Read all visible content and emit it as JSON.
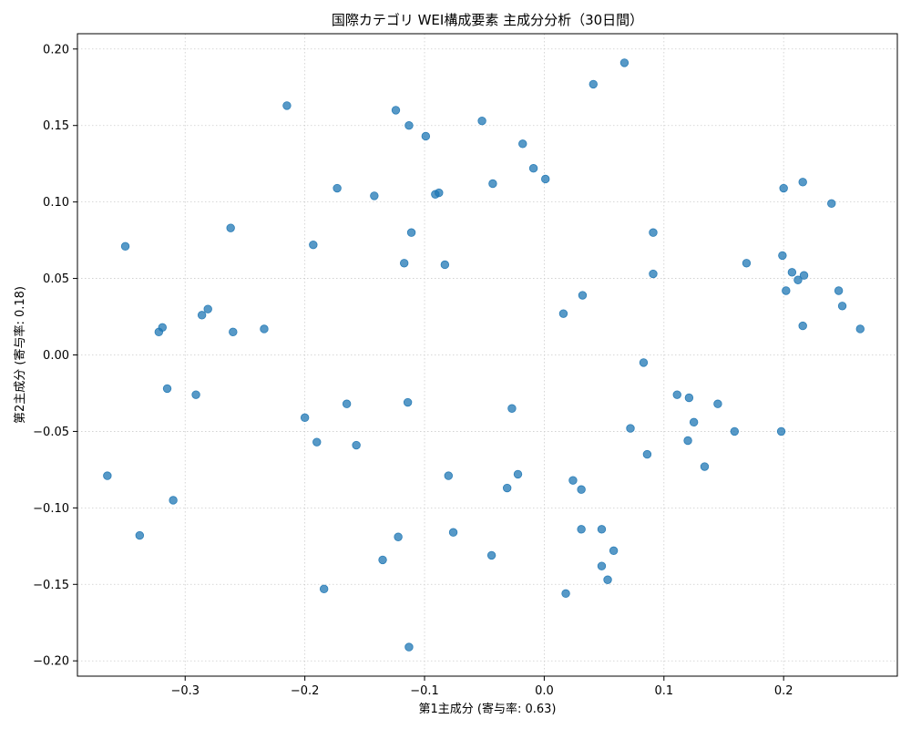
{
  "chart_data": {
    "type": "scatter",
    "title": "国際カテゴリ WEI構成要素 主成分分析（30日間）",
    "xlabel": "第1主成分 (寄与率: 0.63)",
    "ylabel": "第2主成分 (寄与率: 0.18)",
    "xlim": [
      -0.39,
      0.295
    ],
    "ylim": [
      -0.21,
      0.21
    ],
    "xticks": [
      -0.3,
      -0.2,
      -0.1,
      0.0,
      0.1,
      0.2
    ],
    "xtick_labels": [
      "−0.3",
      "−0.2",
      "−0.1",
      "0.0",
      "0.1",
      "0.2"
    ],
    "yticks": [
      -0.2,
      -0.15,
      -0.1,
      -0.05,
      0.0,
      0.05,
      0.1,
      0.15,
      0.2
    ],
    "ytick_labels": [
      "−0.20",
      "−0.15",
      "−0.10",
      "−0.05",
      "0.00",
      "0.05",
      "0.10",
      "0.15",
      "0.20"
    ],
    "grid": true,
    "color": "#1f77b4",
    "points": [
      [
        0.067,
        0.191
      ],
      [
        0.041,
        0.177
      ],
      [
        -0.215,
        0.163
      ],
      [
        -0.124,
        0.16
      ],
      [
        -0.052,
        0.153
      ],
      [
        -0.113,
        0.15
      ],
      [
        -0.099,
        0.143
      ],
      [
        -0.018,
        0.138
      ],
      [
        -0.009,
        0.122
      ],
      [
        0.001,
        0.115
      ],
      [
        -0.043,
        0.112
      ],
      [
        -0.173,
        0.109
      ],
      [
        -0.091,
        0.105
      ],
      [
        -0.088,
        0.106
      ],
      [
        -0.142,
        0.104
      ],
      [
        0.2,
        0.109
      ],
      [
        0.216,
        0.113
      ],
      [
        0.24,
        0.099
      ],
      [
        -0.262,
        0.083
      ],
      [
        -0.111,
        0.08
      ],
      [
        0.091,
        0.08
      ],
      [
        -0.193,
        0.072
      ],
      [
        -0.35,
        0.071
      ],
      [
        -0.117,
        0.06
      ],
      [
        -0.083,
        0.059
      ],
      [
        0.169,
        0.06
      ],
      [
        0.199,
        0.065
      ],
      [
        0.207,
        0.054
      ],
      [
        0.217,
        0.052
      ],
      [
        0.212,
        0.049
      ],
      [
        0.091,
        0.053
      ],
      [
        0.202,
        0.042
      ],
      [
        0.246,
        0.042
      ],
      [
        0.249,
        0.032
      ],
      [
        0.032,
        0.039
      ],
      [
        0.016,
        0.027
      ],
      [
        -0.281,
        0.03
      ],
      [
        -0.286,
        0.026
      ],
      [
        -0.319,
        0.018
      ],
      [
        -0.322,
        0.015
      ],
      [
        -0.26,
        0.015
      ],
      [
        -0.234,
        0.017
      ],
      [
        0.216,
        0.019
      ],
      [
        0.264,
        0.017
      ],
      [
        0.083,
        -0.005
      ],
      [
        -0.315,
        -0.022
      ],
      [
        -0.291,
        -0.026
      ],
      [
        -0.165,
        -0.032
      ],
      [
        -0.114,
        -0.031
      ],
      [
        -0.027,
        -0.035
      ],
      [
        -0.2,
        -0.041
      ],
      [
        0.111,
        -0.026
      ],
      [
        0.121,
        -0.028
      ],
      [
        0.145,
        -0.032
      ],
      [
        0.125,
        -0.044
      ],
      [
        0.072,
        -0.048
      ],
      [
        0.159,
        -0.05
      ],
      [
        0.198,
        -0.05
      ],
      [
        -0.19,
        -0.057
      ],
      [
        -0.157,
        -0.059
      ],
      [
        0.086,
        -0.065
      ],
      [
        0.12,
        -0.056
      ],
      [
        0.134,
        -0.073
      ],
      [
        -0.365,
        -0.079
      ],
      [
        -0.08,
        -0.079
      ],
      [
        -0.022,
        -0.078
      ],
      [
        -0.031,
        -0.087
      ],
      [
        0.024,
        -0.082
      ],
      [
        0.031,
        -0.088
      ],
      [
        -0.31,
        -0.095
      ],
      [
        -0.338,
        -0.118
      ],
      [
        -0.122,
        -0.119
      ],
      [
        -0.076,
        -0.116
      ],
      [
        0.031,
        -0.114
      ],
      [
        0.048,
        -0.114
      ],
      [
        -0.135,
        -0.134
      ],
      [
        -0.044,
        -0.131
      ],
      [
        0.058,
        -0.128
      ],
      [
        0.048,
        -0.138
      ],
      [
        0.053,
        -0.147
      ],
      [
        -0.184,
        -0.153
      ],
      [
        0.018,
        -0.156
      ],
      [
        -0.113,
        -0.191
      ]
    ]
  }
}
